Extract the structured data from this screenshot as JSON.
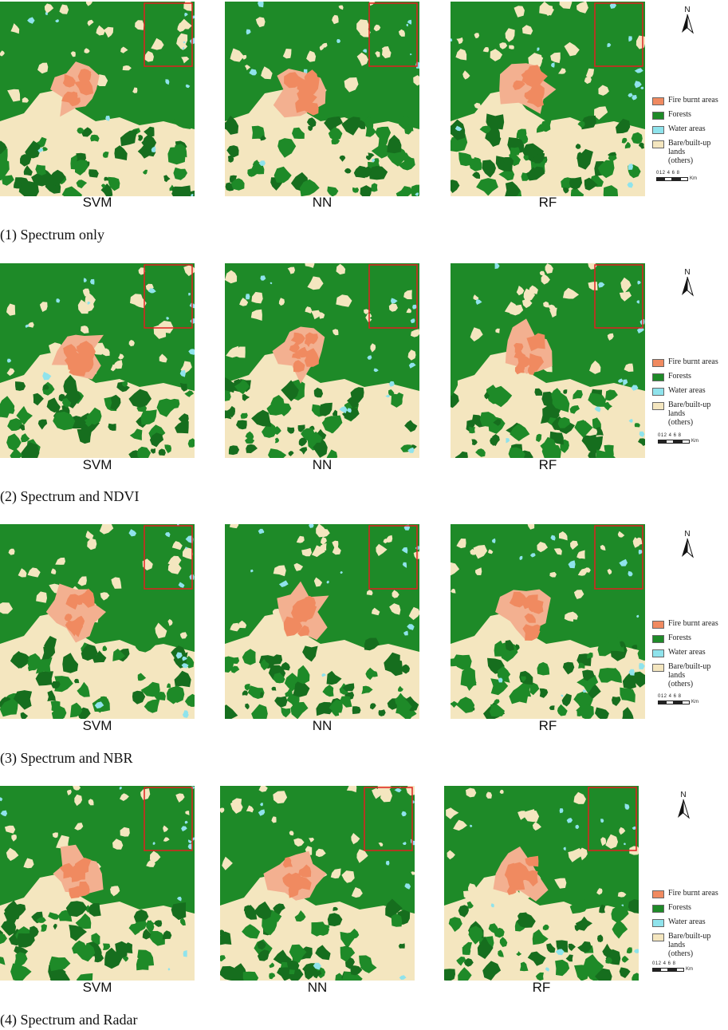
{
  "colors": {
    "fire": "#f08a60",
    "fire_light": "#f3b090",
    "forest": "#1e8a28",
    "forest_dark": "#166e1e",
    "water": "#8fe3ec",
    "bare": "#f4e6bf",
    "highlight_box": "#e02020"
  },
  "legend": {
    "items": [
      {
        "label": "Fire burnt areas",
        "color": "#f08a60"
      },
      {
        "label": "Forests",
        "color": "#1e8a28"
      },
      {
        "label": "Water areas",
        "color": "#8fe3ec"
      },
      {
        "label": "Bare/built-up lands",
        "label2": "(others)",
        "color": "#f4e6bf"
      }
    ],
    "north": "N",
    "scale_ticks": "012  4  6  8",
    "scale_unit": "Km"
  },
  "rows": [
    {
      "caption": "(1) Spectrum only",
      "models": [
        "SVM",
        "NN",
        "RF"
      ]
    },
    {
      "caption": "(2) Spectrum and NDVI",
      "models": [
        "SVM",
        "NN",
        "RF"
      ]
    },
    {
      "caption": "(3) Spectrum and NBR",
      "models": [
        "SVM",
        "NN",
        "RF"
      ]
    },
    {
      "caption": "(4) Spectrum and Radar",
      "models": [
        "SVM",
        "NN",
        "RF"
      ]
    }
  ],
  "icons": {
    "north_arrow": "north-arrow-icon"
  }
}
